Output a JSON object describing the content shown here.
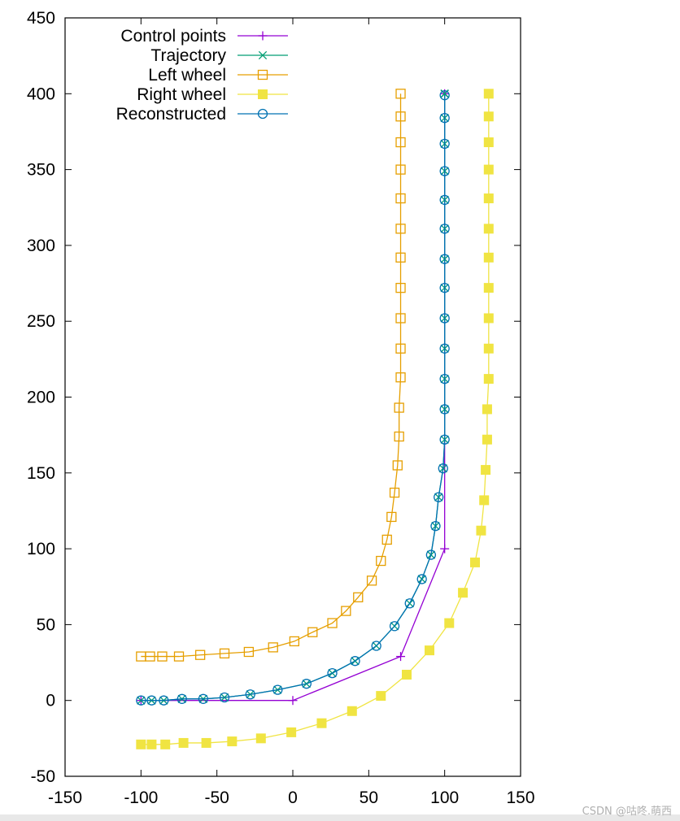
{
  "chart_data": {
    "type": "line",
    "title": "",
    "xlabel": "",
    "ylabel": "",
    "xlim": [
      -150,
      150
    ],
    "ylim": [
      -50,
      450
    ],
    "xticks": [
      -150,
      -100,
      -50,
      0,
      50,
      100,
      150
    ],
    "yticks": [
      -50,
      0,
      50,
      100,
      150,
      200,
      250,
      300,
      350,
      400,
      450
    ],
    "legend_position": "top-left",
    "series": [
      {
        "name": "Control points",
        "color": "#9400d3",
        "marker": "plus",
        "x": [
          -100,
          0,
          71,
          100,
          100
        ],
        "y": [
          0,
          0,
          29,
          100,
          400
        ]
      },
      {
        "name": "Trajectory",
        "color": "#009e73",
        "marker": "cross",
        "x": [
          -100,
          -93,
          -85,
          -73,
          -59,
          -45,
          -28,
          -10,
          9,
          26,
          41,
          55,
          67,
          77,
          85,
          91,
          94,
          96,
          99,
          100,
          100,
          100,
          100,
          100,
          100,
          100,
          100,
          100,
          100,
          100,
          100,
          100,
          100,
          100
        ],
        "y": [
          0,
          0,
          0,
          1,
          1,
          2,
          4,
          7,
          11,
          18,
          26,
          36,
          49,
          64,
          80,
          96,
          115,
          134,
          153,
          172,
          192,
          212,
          232,
          252,
          272,
          291,
          311,
          330,
          349,
          367,
          384,
          400,
          400,
          400
        ]
      },
      {
        "name": "Left wheel",
        "color": "#e69f00",
        "marker": "square-open",
        "x": [
          -100,
          -94,
          -86,
          -75,
          -61,
          -45,
          -29,
          -13,
          1,
          13,
          26,
          35,
          43,
          52,
          58,
          62,
          65,
          67,
          69,
          70,
          70,
          71,
          71,
          71,
          71,
          71,
          71,
          71,
          71,
          71,
          71,
          71
        ],
        "y": [
          29,
          29,
          29,
          29,
          30,
          31,
          32,
          35,
          39,
          45,
          51,
          59,
          68,
          79,
          92,
          106,
          121,
          137,
          155,
          174,
          193,
          213,
          232,
          252,
          272,
          292,
          311,
          331,
          350,
          368,
          385,
          400
        ]
      },
      {
        "name": "Right wheel",
        "color": "#f0e442",
        "marker": "square-filled",
        "x": [
          -100,
          -93,
          -84,
          -72,
          -57,
          -40,
          -21,
          -1,
          19,
          39,
          58,
          75,
          90,
          103,
          112,
          120,
          124,
          126,
          127,
          128,
          128,
          129,
          129,
          129,
          129,
          129,
          129,
          129,
          129,
          129,
          129,
          129
        ],
        "y": [
          -29,
          -29,
          -29,
          -28,
          -28,
          -27,
          -25,
          -21,
          -15,
          -7,
          3,
          17,
          33,
          51,
          71,
          91,
          112,
          132,
          152,
          172,
          192,
          212,
          232,
          252,
          272,
          292,
          311,
          331,
          350,
          368,
          385,
          400
        ]
      },
      {
        "name": "Reconstructed",
        "color": "#0072b2",
        "marker": "circle-open",
        "x": [
          -100,
          -93,
          -85,
          -73,
          -59,
          -45,
          -28,
          -10,
          9,
          26,
          41,
          55,
          67,
          77,
          85,
          91,
          94,
          96,
          99,
          100,
          100,
          100,
          100,
          100,
          100,
          100,
          100,
          100,
          100,
          100,
          100,
          100
        ],
        "y": [
          0,
          0,
          0,
          1,
          1,
          2,
          4,
          7,
          11,
          18,
          26,
          36,
          49,
          64,
          80,
          96,
          115,
          134,
          153,
          172,
          192,
          212,
          232,
          252,
          272,
          291,
          311,
          330,
          349,
          367,
          384,
          399
        ]
      }
    ]
  },
  "watermark": "CSDN @咕咚.萌西"
}
